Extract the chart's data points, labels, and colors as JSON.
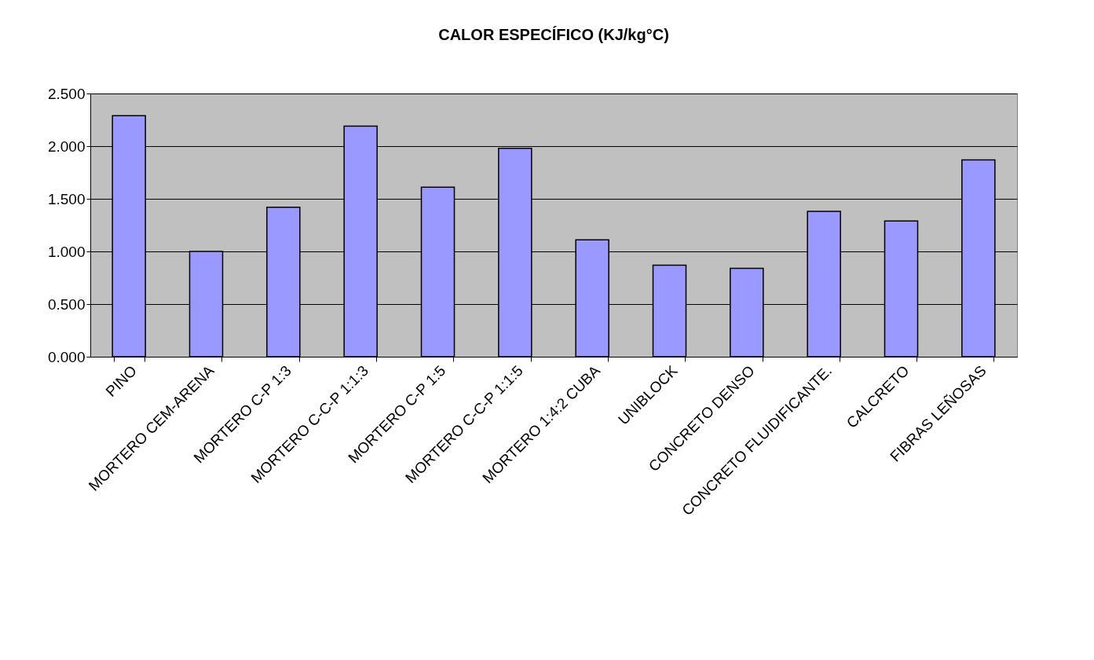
{
  "chart_data": {
    "type": "bar",
    "title": "CALOR ESPECÍFICO (KJ/kg°C)",
    "categories": [
      "PINO",
      "MORTERO CEM-ARENA",
      "MORTERO C-P 1:3",
      "MORTERO C-C-P 1:1:3",
      "MORTERO C-P 1:5",
      "MORTERO C-C-P 1:1:5",
      "MORTERO 1:4:2 CUBA",
      "UNIBLOCK",
      "CONCRETO DENSO",
      "CONCRETO FLUIDIFICANTE.",
      "CALCRETO",
      "FIBRAS LEÑOSAS"
    ],
    "values": [
      2.29,
      1.0,
      1.42,
      2.19,
      1.61,
      1.98,
      1.11,
      0.87,
      0.84,
      1.38,
      1.29,
      1.87
    ],
    "color": "#9999ff",
    "ylim": [
      0,
      2.5
    ],
    "yticks": [
      {
        "value": 0,
        "label": "0.000"
      },
      {
        "value": 0.5,
        "label": "0.500"
      },
      {
        "value": 1.0,
        "label": "1.000"
      },
      {
        "value": 1.5,
        "label": "1.500"
      },
      {
        "value": 2.0,
        "label": "2.000"
      },
      {
        "value": 2.5,
        "label": "2.500"
      }
    ],
    "grid": "y"
  }
}
